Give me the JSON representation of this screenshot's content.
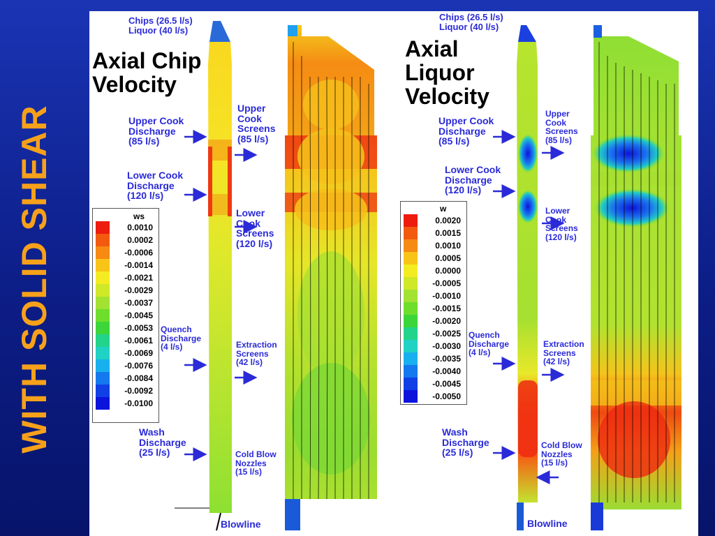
{
  "slide_title": "WITH SOLID SHEAR",
  "left": {
    "title_line1": "Axial Chip",
    "title_line2": "Velocity",
    "inlet_line1": "Chips (26.5 l/s)",
    "inlet_line2": "Liquor (40 l/s)",
    "upper_cook_discharge": [
      "Upper Cook",
      "Discharge",
      "(85 l/s)"
    ],
    "lower_cook_discharge": [
      "Lower Cook",
      "Discharge",
      "(120 l/s)"
    ],
    "upper_cook_screens": [
      "Upper",
      "Cook",
      "Screens",
      "(85 l/s)"
    ],
    "lower_cook_screens": [
      "Lower",
      "Cook",
      "Screens",
      "(120 l/s)"
    ],
    "quench_discharge": [
      "Quench",
      "Discharge",
      "(4 l/s)"
    ],
    "extraction_screens": [
      "Extraction",
      "Screens",
      "(42 l/s)"
    ],
    "wash_discharge": [
      "Wash",
      "Discharge",
      "(25 l/s)"
    ],
    "cold_blow_nozzles": [
      "Cold Blow",
      "Nozzles",
      "(15 l/s)"
    ],
    "blowline": "Blowline",
    "legend": {
      "title": "ws",
      "values": [
        "0.0010",
        "0.0002",
        "-0.0006",
        "-0.0014",
        "-0.0021",
        "-0.0029",
        "-0.0037",
        "-0.0045",
        "-0.0053",
        "-0.0061",
        "-0.0069",
        "-0.0076",
        "-0.0084",
        "-0.0092",
        "-0.0100"
      ],
      "colors": [
        "#ee1c0e",
        "#f25a10",
        "#f68a12",
        "#f8c418",
        "#f4ec22",
        "#cfe828",
        "#a2e232",
        "#6ede2c",
        "#3cd63a",
        "#22d48a",
        "#20d2c4",
        "#18b0ee",
        "#1478ee",
        "#1040e6",
        "#0c14dc"
      ]
    }
  },
  "right": {
    "title_line1": "Axial",
    "title_line2": "Liquor",
    "title_line3": "Velocity",
    "inlet_line1": "Chips (26.5 l/s)",
    "inlet_line2": "Liquor (40 l/s)",
    "upper_cook_discharge": [
      "Upper Cook",
      "Discharge",
      "(85 l/s)"
    ],
    "lower_cook_discharge": [
      "Lower Cook",
      "Discharge",
      "(120 l/s)"
    ],
    "upper_cook_screens": [
      "Upper",
      "Cook",
      "Screens",
      "(85 l/s)"
    ],
    "lower_cook_screens": [
      "Lower",
      "Cook",
      "Screens",
      "(120 l/s)"
    ],
    "quench_discharge": [
      "Quench",
      "Discharge",
      "(4 l/s)"
    ],
    "extraction_screens": [
      "Extraction",
      "Screens",
      "(42 l/s)"
    ],
    "wash_discharge": [
      "Wash",
      "Discharge",
      "(25 l/s)"
    ],
    "cold_blow_nozzles": [
      "Cold Blow",
      "Nozzles",
      "(15 l/s)"
    ],
    "blowline": "Blowline",
    "legend": {
      "title": "w",
      "values": [
        "0.0020",
        "0.0015",
        "0.0010",
        "0.0005",
        "0.0000",
        "-0.0005",
        "-0.0010",
        "-0.0015",
        "-0.0020",
        "-0.0025",
        "-0.0030",
        "-0.0035",
        "-0.0040",
        "-0.0045",
        "-0.0050"
      ],
      "colors": [
        "#ee1c0e",
        "#f25a10",
        "#f68a12",
        "#f8c418",
        "#f4ec22",
        "#cfe828",
        "#a2e232",
        "#6ede2c",
        "#3cd63a",
        "#22d48a",
        "#20d2c4",
        "#18b0ee",
        "#1478ee",
        "#1040e6",
        "#0c14dc"
      ]
    }
  },
  "colors": {
    "background": "#10238f",
    "title": "#f7a11a",
    "label": "#2a2ad8",
    "arrow": "#2a2ad8"
  }
}
